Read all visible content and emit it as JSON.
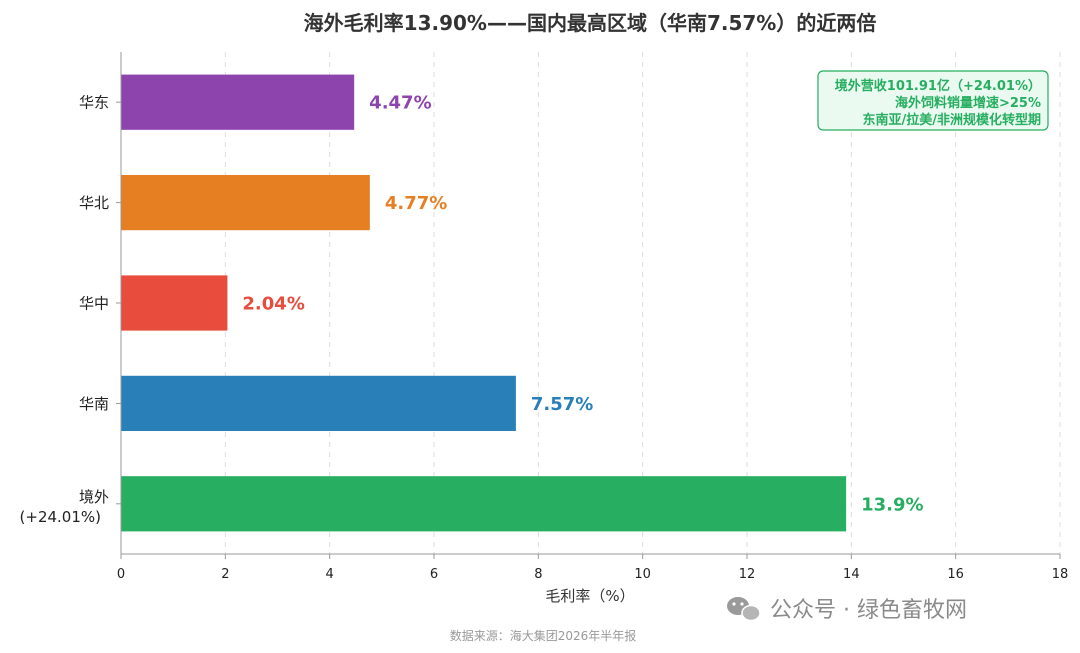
{
  "chart_data": {
    "type": "bar",
    "orientation": "horizontal",
    "title": "海外毛利率13.90%——国内最高区域（华南7.57%）的近两倍",
    "categories": [
      "华东",
      "华北",
      "华中",
      "华南",
      "境外"
    ],
    "category_sublabels": [
      "",
      "",
      "",
      "",
      "(+24.01%)"
    ],
    "values": [
      4.47,
      4.77,
      2.04,
      7.57,
      13.9
    ],
    "value_labels": [
      "4.47%",
      "4.77%",
      "2.04%",
      "7.57%",
      "13.9%"
    ],
    "colors": [
      "#8e44ad",
      "#e67e22",
      "#e74c3c",
      "#2980b9",
      "#27ae60"
    ],
    "xlabel": "毛利率（%）",
    "ylabel": "",
    "xlim": [
      0,
      18
    ],
    "xticks": [
      0,
      2,
      4,
      6,
      8,
      10,
      12,
      14,
      16,
      18
    ],
    "grid": "vertical-dashed",
    "annotation": {
      "lines": [
        "境外营收101.91亿（+24.01%）",
        "海外饲料销量增速>25%",
        "东南亚/拉美/非洲规模化转型期"
      ],
      "placement": "top-right",
      "color": "#27ae60",
      "background": "#eafaf1"
    }
  },
  "source": "数据来源：海大集团2026年半年报",
  "watermark": {
    "icon": "wechat-icon",
    "text": "公众号 · 绿色畜牧网"
  }
}
